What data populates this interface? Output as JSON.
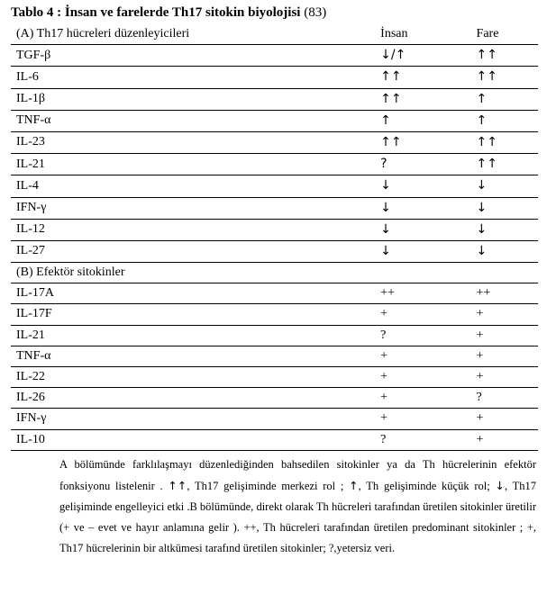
{
  "title_bold": "Tablo 4 :  İnsan ve farelerde Th17 sitokin biyolojisi ",
  "title_ref": "(83)",
  "header": {
    "section_a": "(A) Th17 hücreleri düzenleyicileri",
    "col_human": "İnsan",
    "col_mouse": "Fare"
  },
  "rows_a": [
    {
      "label": "TGF-β",
      "human": "↓/↑",
      "mouse": "↑↑"
    },
    {
      "label": "IL-6",
      "human": "↑↑",
      "mouse": "↑↑"
    },
    {
      "label": "IL-1β",
      "human": "↑↑",
      "mouse": "↑"
    },
    {
      "label": "TNF-α",
      "human": "↑",
      "mouse": "↑"
    },
    {
      "label": "IL-23",
      "human": "↑↑",
      "mouse": "↑↑"
    },
    {
      "label": "IL-21",
      "human": "?",
      "mouse": "↑↑"
    },
    {
      "label": "IL-4",
      "human": "↓",
      "mouse": "↓"
    },
    {
      "label": "IFN-γ",
      "human": "↓",
      "mouse": "↓"
    },
    {
      "label": "IL-12",
      "human": "↓",
      "mouse": "↓"
    },
    {
      "label": "IL-27",
      "human": "↓",
      "mouse": "↓"
    }
  ],
  "section_b": "(B) Efektör sitokinler",
  "rows_b": [
    {
      "label": "IL-17A",
      "human": "++",
      "mouse": "++"
    },
    {
      "label": "IL-17F",
      "human": "+",
      "mouse": "+"
    },
    {
      "label": "IL-21",
      "human": "?",
      "mouse": "+"
    },
    {
      "label": "TNF-α",
      "human": "+",
      "mouse": "+"
    },
    {
      "label": "IL-22",
      "human": "+",
      "mouse": "+"
    },
    {
      "label": "IL-26",
      "human": "+",
      "mouse": "?"
    },
    {
      "label": "IFN-γ",
      "human": "+",
      "mouse": "+"
    },
    {
      "label": "IL-10",
      "human": "?",
      "mouse": "+"
    }
  ],
  "caption": {
    "t1": "A  bölümünde  farklılaşmayı  düzenlediğinden  bahsedilen  sitokinler  ya  da  Th",
    "t2": "hücrelerinin  efektör  fonksiyonu  listelenir  .",
    "s_up2": "↑↑",
    "t3": ",  Th17  gelişiminde  merkezi  rol  ;  ",
    "s_up1": "↑",
    "t4": ",  Th",
    "t5": "gelişiminde  küçük  rol;  ",
    "s_dn": "↓",
    "t6": ", Th17 gelişiminde engelleyici etki .B bölümünde, direkt olarak Th",
    "t7": "hücreleri  tarafından  üretilen  sitokinler  üretilir  (+  ve  –  evet  ve  hayır  anlamına  gelir  ).  ++,  Th",
    "t8": "hücreleri tarafından üretilen predominant sitokinler ; +, Th17 hücrelerinin bir altkümesi tarafınd",
    "t9": "üretilen sitokinler; ?,yetersiz veri."
  }
}
